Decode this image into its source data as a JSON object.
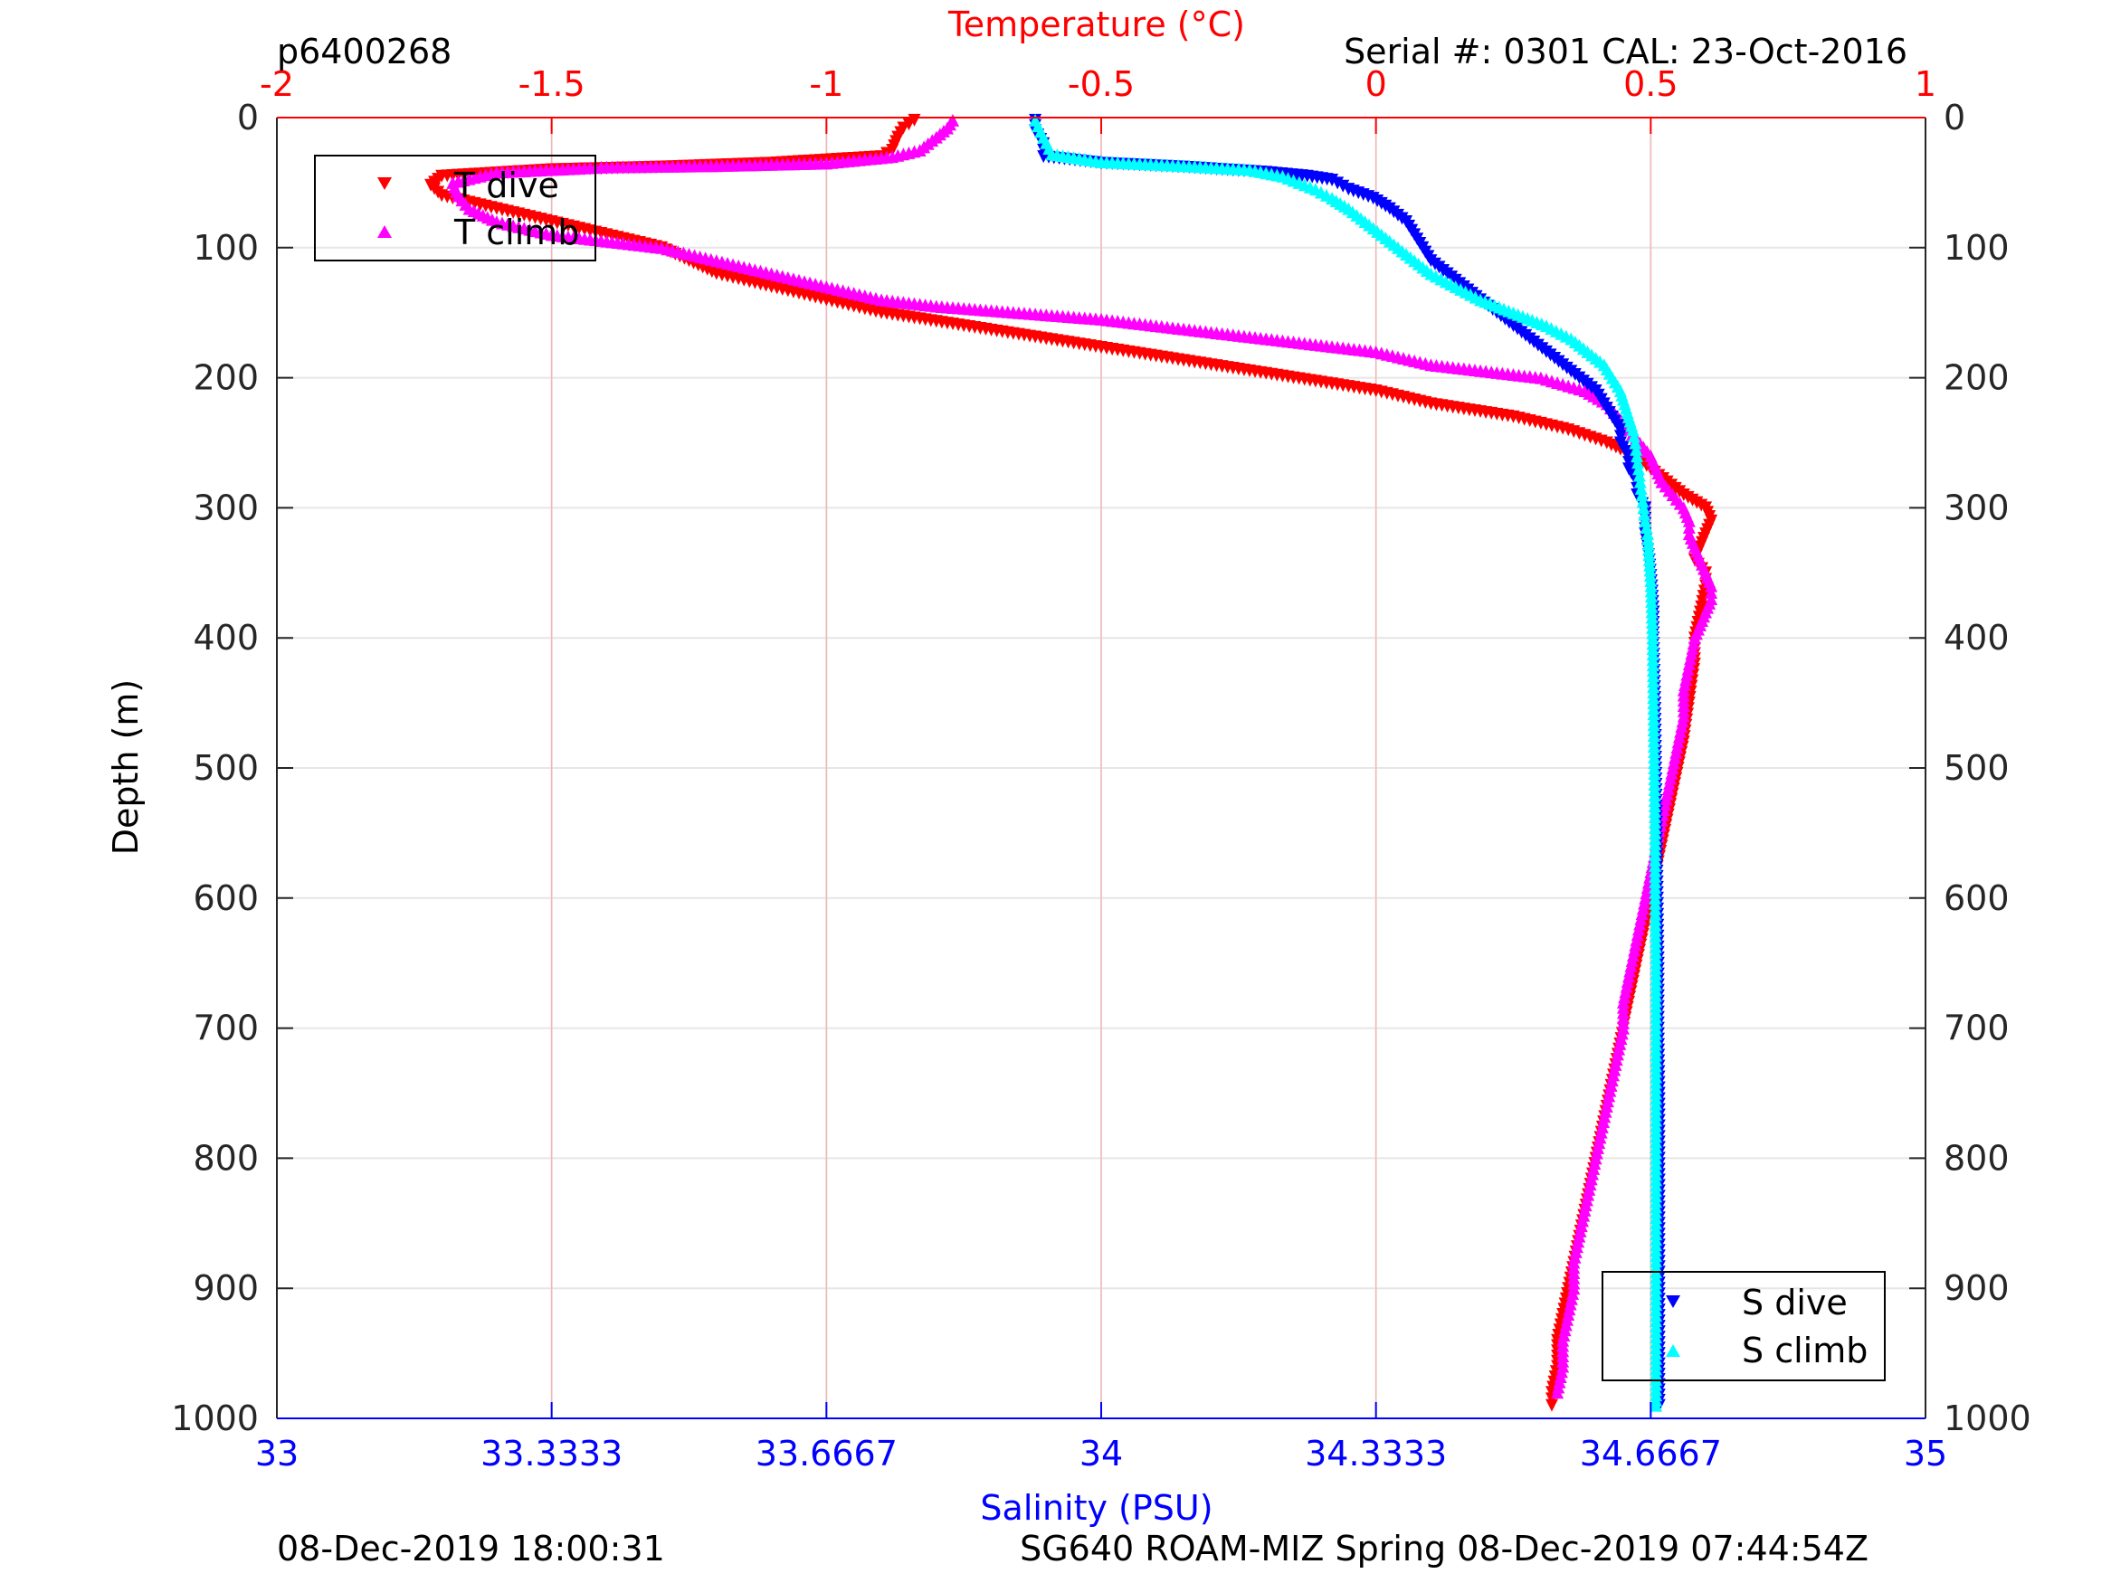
{
  "header": {
    "left": "p6400268",
    "right": "Serial #: 0301  CAL: 23-Oct-2016"
  },
  "footer": {
    "left": "08-Dec-2019 18:00:31",
    "right": "SG640 ROAM-MIZ Spring 08-Dec-2019 07:44:54Z"
  },
  "colors": {
    "t_dive": "#ff0000",
    "t_climb": "#ff00ff",
    "s_dive": "#0000ff",
    "s_climb": "#00ffff",
    "temp_axis": "#ff0000",
    "sal_axis": "#0000ff",
    "grid": "#e6e6e6",
    "temp_grid": "#f2b8b8"
  },
  "chart_data": {
    "type": "scatter",
    "ylabel": "Depth (m)",
    "xlabel_bottom": "Salinity (PSU)",
    "xlabel_top": "Temperature (°C)",
    "ylim": [
      0,
      1000
    ],
    "y_reversed": true,
    "xlim_bottom": [
      33,
      35
    ],
    "xlim_top": [
      -2,
      1
    ],
    "yticks": [
      "0",
      "100",
      "200",
      "300",
      "400",
      "500",
      "600",
      "700",
      "800",
      "900",
      "1000"
    ],
    "xticks_bottom": [
      "33",
      "33.3333",
      "33.6667",
      "34",
      "34.3333",
      "34.6667",
      "35"
    ],
    "xticks_top": [
      "-2",
      "-1.5",
      "-1",
      "-0.5",
      "0",
      "0.5",
      "1"
    ],
    "grid": true,
    "legends": [
      {
        "placement": "top-left",
        "entries": [
          "T dive",
          "T climb"
        ]
      },
      {
        "placement": "bottom-right",
        "entries": [
          "S dive",
          "S climb"
        ]
      }
    ],
    "series": [
      {
        "name": "T dive",
        "axis": "temperature",
        "marker": "triangle-down",
        "color": "#ff0000",
        "points": [
          [
            -0.84,
            2
          ],
          [
            -0.86,
            8
          ],
          [
            -0.87,
            15
          ],
          [
            -0.88,
            25
          ],
          [
            -0.9,
            30
          ],
          [
            -1.1,
            35
          ],
          [
            -1.3,
            38
          ],
          [
            -1.5,
            40
          ],
          [
            -1.7,
            45
          ],
          [
            -1.72,
            52
          ],
          [
            -1.7,
            60
          ],
          [
            -1.6,
            70
          ],
          [
            -1.5,
            80
          ],
          [
            -1.4,
            90
          ],
          [
            -1.35,
            95
          ],
          [
            -1.3,
            100
          ],
          [
            -1.25,
            110
          ],
          [
            -1.2,
            120
          ],
          [
            -1.1,
            130
          ],
          [
            -1.0,
            140
          ],
          [
            -0.9,
            150
          ],
          [
            -0.75,
            160
          ],
          [
            -0.6,
            170
          ],
          [
            -0.45,
            180
          ],
          [
            -0.3,
            190
          ],
          [
            -0.15,
            200
          ],
          [
            0.0,
            210
          ],
          [
            0.1,
            220
          ],
          [
            0.25,
            230
          ],
          [
            0.35,
            240
          ],
          [
            0.42,
            250
          ],
          [
            0.47,
            260
          ],
          [
            0.5,
            270
          ],
          [
            0.53,
            280
          ],
          [
            0.56,
            290
          ],
          [
            0.6,
            300
          ],
          [
            0.61,
            310
          ],
          [
            0.6,
            320
          ],
          [
            0.59,
            330
          ],
          [
            0.58,
            340
          ],
          [
            0.6,
            350
          ],
          [
            0.6,
            360
          ],
          [
            0.59,
            380
          ],
          [
            0.58,
            400
          ],
          [
            0.58,
            420
          ],
          [
            0.57,
            450
          ],
          [
            0.56,
            480
          ],
          [
            0.55,
            500
          ],
          [
            0.54,
            520
          ],
          [
            0.53,
            540
          ],
          [
            0.52,
            560
          ],
          [
            0.51,
            580
          ],
          [
            0.5,
            600
          ],
          [
            0.49,
            620
          ],
          [
            0.48,
            640
          ],
          [
            0.47,
            660
          ],
          [
            0.46,
            680
          ],
          [
            0.45,
            700
          ],
          [
            0.44,
            720
          ],
          [
            0.43,
            740
          ],
          [
            0.42,
            760
          ],
          [
            0.41,
            780
          ],
          [
            0.4,
            800
          ],
          [
            0.39,
            820
          ],
          [
            0.38,
            840
          ],
          [
            0.37,
            860
          ],
          [
            0.36,
            880
          ],
          [
            0.35,
            900
          ],
          [
            0.34,
            920
          ],
          [
            0.33,
            940
          ],
          [
            0.33,
            960
          ],
          [
            0.32,
            980
          ],
          [
            0.32,
            990
          ]
        ]
      },
      {
        "name": "T climb",
        "axis": "temperature",
        "marker": "triangle-up",
        "color": "#ff00ff",
        "points": [
          [
            -0.77,
            2
          ],
          [
            -0.78,
            8
          ],
          [
            -0.8,
            15
          ],
          [
            -0.83,
            25
          ],
          [
            -0.88,
            30
          ],
          [
            -1.0,
            35
          ],
          [
            -1.2,
            37
          ],
          [
            -1.4,
            38
          ],
          [
            -1.6,
            42
          ],
          [
            -1.68,
            50
          ],
          [
            -1.67,
            60
          ],
          [
            -1.65,
            70
          ],
          [
            -1.6,
            80
          ],
          [
            -1.5,
            90
          ],
          [
            -1.4,
            95
          ],
          [
            -1.3,
            100
          ],
          [
            -1.2,
            110
          ],
          [
            -1.1,
            120
          ],
          [
            -1.0,
            130
          ],
          [
            -0.9,
            140
          ],
          [
            -0.8,
            145
          ],
          [
            -0.65,
            150
          ],
          [
            -0.5,
            155
          ],
          [
            -0.4,
            160
          ],
          [
            -0.3,
            165
          ],
          [
            -0.2,
            170
          ],
          [
            -0.1,
            175
          ],
          [
            0.0,
            180
          ],
          [
            0.05,
            185
          ],
          [
            0.1,
            190
          ],
          [
            0.2,
            195
          ],
          [
            0.3,
            200
          ],
          [
            0.38,
            210
          ],
          [
            0.42,
            220
          ],
          [
            0.44,
            230
          ],
          [
            0.46,
            240
          ],
          [
            0.48,
            250
          ],
          [
            0.5,
            260
          ],
          [
            0.51,
            270
          ],
          [
            0.52,
            280
          ],
          [
            0.54,
            290
          ],
          [
            0.56,
            300
          ],
          [
            0.57,
            310
          ],
          [
            0.57,
            320
          ],
          [
            0.58,
            330
          ],
          [
            0.59,
            340
          ],
          [
            0.6,
            350
          ],
          [
            0.61,
            360
          ],
          [
            0.61,
            370
          ],
          [
            0.6,
            380
          ],
          [
            0.59,
            390
          ],
          [
            0.58,
            400
          ],
          [
            0.57,
            420
          ],
          [
            0.56,
            440
          ],
          [
            0.56,
            460
          ],
          [
            0.55,
            480
          ],
          [
            0.54,
            500
          ],
          [
            0.53,
            520
          ],
          [
            0.52,
            540
          ],
          [
            0.51,
            560
          ],
          [
            0.5,
            580
          ],
          [
            0.49,
            600
          ],
          [
            0.48,
            620
          ],
          [
            0.47,
            640
          ],
          [
            0.46,
            660
          ],
          [
            0.45,
            680
          ],
          [
            0.45,
            700
          ],
          [
            0.44,
            720
          ],
          [
            0.43,
            740
          ],
          [
            0.42,
            760
          ],
          [
            0.41,
            780
          ],
          [
            0.4,
            800
          ],
          [
            0.39,
            820
          ],
          [
            0.38,
            840
          ],
          [
            0.37,
            860
          ],
          [
            0.36,
            880
          ],
          [
            0.36,
            900
          ],
          [
            0.35,
            920
          ],
          [
            0.34,
            940
          ],
          [
            0.34,
            960
          ],
          [
            0.33,
            980
          ]
        ]
      },
      {
        "name": "S dive",
        "axis": "salinity",
        "marker": "triangle-down",
        "color": "#0000ff",
        "points": [
          [
            33.92,
            2
          ],
          [
            33.92,
            10
          ],
          [
            33.93,
            20
          ],
          [
            33.93,
            30
          ],
          [
            34.0,
            35
          ],
          [
            34.1,
            38
          ],
          [
            34.2,
            42
          ],
          [
            34.25,
            45
          ],
          [
            34.28,
            48
          ],
          [
            34.3,
            55
          ],
          [
            34.33,
            62
          ],
          [
            34.35,
            70
          ],
          [
            34.37,
            80
          ],
          [
            34.38,
            90
          ],
          [
            34.39,
            100
          ],
          [
            34.4,
            110
          ],
          [
            34.42,
            120
          ],
          [
            34.44,
            130
          ],
          [
            34.46,
            140
          ],
          [
            34.48,
            150
          ],
          [
            34.5,
            160
          ],
          [
            34.52,
            170
          ],
          [
            34.54,
            180
          ],
          [
            34.56,
            190
          ],
          [
            34.58,
            200
          ],
          [
            34.6,
            210
          ],
          [
            34.61,
            220
          ],
          [
            34.62,
            230
          ],
          [
            34.63,
            240
          ],
          [
            34.63,
            250
          ],
          [
            34.64,
            260
          ],
          [
            34.64,
            270
          ],
          [
            34.65,
            280
          ],
          [
            34.65,
            290
          ],
          [
            34.66,
            300
          ],
          [
            34.66,
            320
          ],
          [
            34.665,
            340
          ],
          [
            34.668,
            360
          ],
          [
            34.67,
            380
          ],
          [
            34.67,
            400
          ],
          [
            34.672,
            450
          ],
          [
            34.673,
            500
          ],
          [
            34.674,
            550
          ],
          [
            34.675,
            600
          ],
          [
            34.676,
            650
          ],
          [
            34.676,
            700
          ],
          [
            34.677,
            750
          ],
          [
            34.677,
            800
          ],
          [
            34.677,
            850
          ],
          [
            34.677,
            900
          ],
          [
            34.677,
            950
          ],
          [
            34.677,
            990
          ]
        ]
      },
      {
        "name": "S climb",
        "axis": "salinity",
        "marker": "triangle-up",
        "color": "#00ffff",
        "points": [
          [
            33.92,
            2
          ],
          [
            33.93,
            15
          ],
          [
            33.94,
            28
          ],
          [
            34.0,
            34
          ],
          [
            34.1,
            37
          ],
          [
            34.18,
            40
          ],
          [
            34.22,
            45
          ],
          [
            34.24,
            50
          ],
          [
            34.26,
            55
          ],
          [
            34.28,
            62
          ],
          [
            34.3,
            70
          ],
          [
            34.32,
            80
          ],
          [
            34.34,
            90
          ],
          [
            34.36,
            100
          ],
          [
            34.38,
            110
          ],
          [
            34.4,
            120
          ],
          [
            34.43,
            130
          ],
          [
            34.46,
            140
          ],
          [
            34.5,
            150
          ],
          [
            34.54,
            160
          ],
          [
            34.57,
            170
          ],
          [
            34.59,
            180
          ],
          [
            34.61,
            190
          ],
          [
            34.62,
            200
          ],
          [
            34.63,
            210
          ],
          [
            34.635,
            220
          ],
          [
            34.64,
            230
          ],
          [
            34.645,
            240
          ],
          [
            34.648,
            250
          ],
          [
            34.65,
            260
          ],
          [
            34.652,
            270
          ],
          [
            34.654,
            280
          ],
          [
            34.656,
            290
          ],
          [
            34.658,
            300
          ],
          [
            34.66,
            310
          ],
          [
            34.663,
            320
          ],
          [
            34.665,
            340
          ],
          [
            34.667,
            360
          ],
          [
            34.668,
            380
          ],
          [
            34.669,
            400
          ],
          [
            34.67,
            450
          ],
          [
            34.671,
            500
          ],
          [
            34.672,
            550
          ],
          [
            34.672,
            600
          ],
          [
            34.673,
            650
          ],
          [
            34.673,
            700
          ],
          [
            34.673,
            750
          ],
          [
            34.673,
            800
          ],
          [
            34.673,
            850
          ],
          [
            34.673,
            900
          ],
          [
            34.673,
            950
          ],
          [
            34.673,
            990
          ]
        ]
      }
    ]
  }
}
